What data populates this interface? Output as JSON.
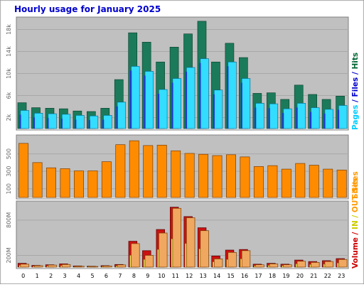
{
  "chart_data": {
    "type": "bar",
    "title": "Hourly usage for January 2025",
    "categories": [
      "0",
      "1",
      "2",
      "3",
      "4",
      "5",
      "6",
      "7",
      "8",
      "9",
      "10",
      "11",
      "12",
      "13",
      "14",
      "15",
      "16",
      "17",
      "18",
      "19",
      "20",
      "21",
      "22",
      "23"
    ],
    "panels": [
      {
        "id": "pages-files-hits",
        "ylabel_parts": [
          {
            "text": "Pages",
            "color": "#00ccff"
          },
          {
            "text": " / ",
            "color": "#0000cc"
          },
          {
            "text": "Files",
            "color": "#0000cc"
          },
          {
            "text": " / ",
            "color": "#0000cc"
          },
          {
            "text": "Hits",
            "color": "#006633"
          }
        ],
        "y_ticks": [
          "2k",
          "6k",
          "10k",
          "14k",
          "18k"
        ],
        "y_tick_values": [
          2000,
          6000,
          10000,
          14000,
          18000
        ],
        "ylim": [
          0,
          20000
        ],
        "series": [
          {
            "name": "Hits",
            "color": "#1b7a5a",
            "values": [
              4700,
              3800,
              3700,
              3600,
              3200,
              3100,
              3700,
              8900,
              17400,
              15700,
              12100,
              14800,
              17200,
              19500,
              12100,
              15500,
              12900,
              6400,
              6500,
              5300,
              7900,
              6200,
              5300,
              5900
            ]
          },
          {
            "name": "Files",
            "color": "#1a3ad0",
            "values": [
              3300,
              2800,
              2700,
              2600,
              2400,
              2300,
              2400,
              4800,
              11300,
              10400,
              7100,
              9100,
              11100,
              12700,
              7000,
              12100,
              9100,
              4600,
              4500,
              3600,
              4600,
              3800,
              3500,
              4200
            ]
          },
          {
            "name": "Pages",
            "color": "#33ddff",
            "values": [
              3300,
              2800,
              2700,
              2600,
              2400,
              2300,
              2400,
              4800,
              11300,
              10400,
              7100,
              9100,
              11100,
              12700,
              7000,
              12100,
              9100,
              4600,
              4500,
              3600,
              4600,
              3800,
              3500,
              4200
            ]
          }
        ]
      },
      {
        "id": "sites",
        "ylabel_parts": [
          {
            "text": "Sites",
            "color": "#ff9900"
          }
        ],
        "y_ticks": [
          "100",
          "300",
          "500"
        ],
        "y_tick_values": [
          100,
          300,
          500
        ],
        "ylim": [
          0,
          700
        ],
        "series": [
          {
            "name": "Sites",
            "color": "#ff8c00",
            "values": [
              620,
              400,
              340,
              330,
              305,
              305,
              410,
              605,
              650,
              595,
              600,
              535,
              505,
              495,
              480,
              490,
              465,
              355,
              365,
              325,
              390,
              370,
              325,
              315
            ]
          }
        ]
      },
      {
        "id": "volume-in-out",
        "ylabel_parts": [
          {
            "text": "Volume",
            "color": "#cc0000"
          },
          {
            "text": " / ",
            "color": "#cc0000"
          },
          {
            "text": "IN",
            "color": "#cccc00"
          },
          {
            "text": " / ",
            "color": "#cccc00"
          },
          {
            "text": "OUT",
            "color": "#ff9900"
          },
          {
            "text": " ",
            "color": "#ff9900"
          },
          {
            "text": "Sites",
            "color": "#ff9900"
          }
        ],
        "y_ticks": [
          "200M",
          "800M"
        ],
        "y_tick_values": [
          200,
          800
        ],
        "ylim": [
          0,
          1100
        ],
        "series": [
          {
            "name": "Volume",
            "color": "#cc1111",
            "values": [
              65,
              30,
              40,
              55,
              20,
              15,
              25,
              45,
              440,
              280,
              640,
              1020,
              860,
              670,
              190,
              290,
              300,
              50,
              65,
              50,
              120,
              95,
              110,
              145
            ]
          },
          {
            "name": "IN",
            "color": "#ffee66",
            "values": [
              30,
              15,
              20,
              25,
              10,
              8,
              12,
              20,
              200,
              130,
              300,
              480,
              400,
              310,
              90,
              130,
              140,
              25,
              30,
              25,
              55,
              45,
              50,
              70
            ]
          },
          {
            "name": "OUT",
            "color": "#f0a860",
            "values": [
              50,
              25,
              35,
              45,
              15,
              12,
              20,
              38,
              400,
              200,
              580,
              1000,
              840,
              620,
              140,
              250,
              280,
              40,
              55,
              40,
              100,
              80,
              95,
              130
            ]
          }
        ]
      }
    ],
    "colors": {
      "title": "#0000cc",
      "plot_background": "#c0c0c0",
      "gridline": "#a8a8a8",
      "frame_background": "#ffffff"
    }
  }
}
